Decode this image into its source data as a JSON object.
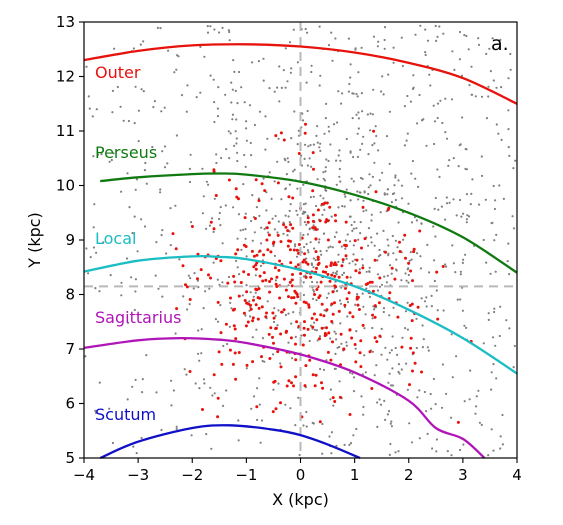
{
  "chart_data": {
    "type": "scatter",
    "title": "",
    "panel_label": "a.",
    "xlabel": "X (kpc)",
    "ylabel": "Y (kpc)",
    "xlim": [
      -4,
      4
    ],
    "ylim": [
      5,
      13
    ],
    "xticks": [
      -4,
      -3,
      -2,
      -1,
      0,
      1,
      2,
      3,
      4
    ],
    "yticks": [
      5,
      6,
      7,
      8,
      9,
      10,
      11,
      12,
      13
    ],
    "sun_position": {
      "x": 0,
      "y": 8.15
    },
    "grid": false,
    "legend": "none",
    "arms": [
      {
        "name": "Outer",
        "color": "#e8120c",
        "points": [
          [
            -4,
            12.3
          ],
          [
            -3,
            12.47
          ],
          [
            -2,
            12.57
          ],
          [
            -1,
            12.59
          ],
          [
            0,
            12.55
          ],
          [
            1,
            12.44
          ],
          [
            2,
            12.25
          ],
          [
            3,
            11.97
          ],
          [
            4,
            11.5
          ]
        ]
      },
      {
        "name": "Perseus",
        "color": "#107a10",
        "points": [
          [
            -3.7,
            10.08
          ],
          [
            -3,
            10.15
          ],
          [
            -2,
            10.21
          ],
          [
            -1.5,
            10.22
          ],
          [
            -1,
            10.2
          ],
          [
            0,
            10.07
          ],
          [
            1,
            9.83
          ],
          [
            2,
            9.5
          ],
          [
            3,
            9.05
          ],
          [
            4,
            8.4
          ]
        ]
      },
      {
        "name": "Local",
        "color": "#1bbdc4",
        "points": [
          [
            -4,
            8.42
          ],
          [
            -3,
            8.62
          ],
          [
            -2,
            8.7
          ],
          [
            -1.5,
            8.69
          ],
          [
            -1,
            8.65
          ],
          [
            0,
            8.45
          ],
          [
            1,
            8.15
          ],
          [
            2,
            7.72
          ],
          [
            3,
            7.2
          ],
          [
            4,
            6.55
          ]
        ]
      },
      {
        "name": "Sagittarius",
        "color": "#b015b8",
        "points": [
          [
            -4,
            7.02
          ],
          [
            -3,
            7.16
          ],
          [
            -2.2,
            7.2
          ],
          [
            -1.5,
            7.17
          ],
          [
            -1,
            7.11
          ],
          [
            0,
            6.9
          ],
          [
            1,
            6.57
          ],
          [
            2,
            6.05
          ],
          [
            2.5,
            5.55
          ],
          [
            3,
            5.35
          ],
          [
            3.4,
            5.0
          ]
        ]
      },
      {
        "name": "Scutum",
        "color": "#1010c8",
        "points": [
          [
            -3.7,
            5.0
          ],
          [
            -3,
            5.3
          ],
          [
            -2,
            5.55
          ],
          [
            -1.3,
            5.6
          ],
          [
            -0.5,
            5.52
          ],
          [
            0,
            5.42
          ],
          [
            0.5,
            5.25
          ],
          [
            1.1,
            5.0
          ]
        ]
      }
    ],
    "scatter_series": [
      {
        "role": "background sources",
        "color": "#7f7f7f",
        "count": 1150,
        "distribution": "spread over the whole panel, denser toward the upper right"
      },
      {
        "role": "selected sources",
        "color": "#e8120c",
        "count": 420,
        "distribution": "concentrated between X -2 and 2.5, Y 6 and 10.5, densest near X 0–1, Y 8–9"
      }
    ]
  },
  "colors": {
    "outer": "#e8120c",
    "perseus": "#107a10",
    "local": "#1bbdc4",
    "sagittarius": "#b015b8",
    "scutum": "#1010c8",
    "gray_points": "#7f7f7f",
    "red_points": "#e8120c",
    "sun_lines": "#b8b8b8"
  }
}
